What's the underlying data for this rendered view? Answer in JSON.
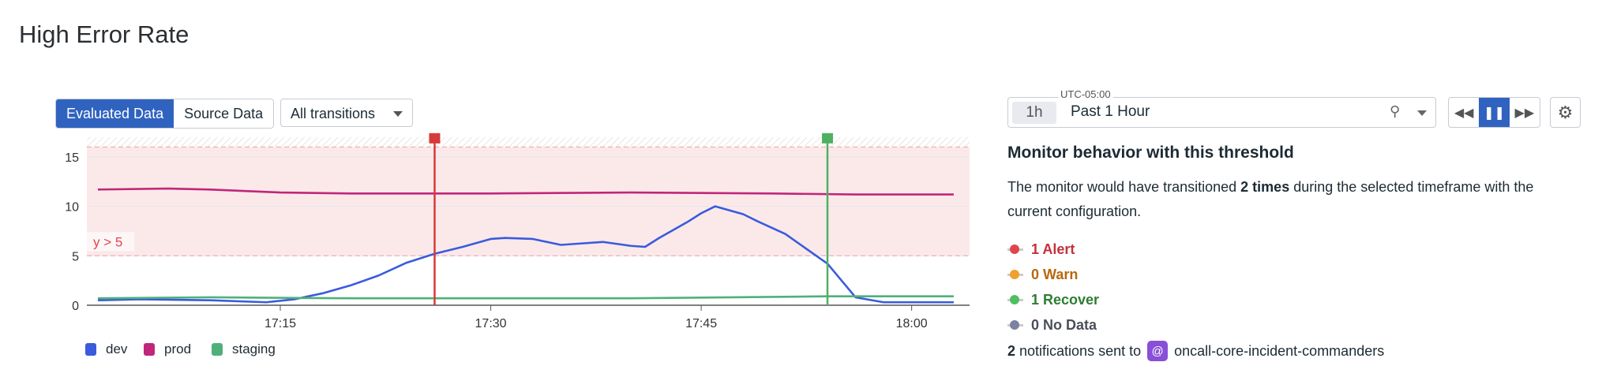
{
  "title": "High Error Rate",
  "toolbar": {
    "evaluated_label": "Evaluated Data",
    "source_label": "Source Data",
    "transitions_select": "All transitions"
  },
  "time_picker": {
    "timezone": "UTC-05:00",
    "chip": "1h",
    "label": "Past 1 Hour",
    "icons": [
      "pin-icon",
      "chevron-down-icon",
      "rewind-icon",
      "pause-icon",
      "fast-forward-icon",
      "gear-icon"
    ]
  },
  "monitor_behavior": {
    "title": "Monitor behavior with this threshold",
    "text_before": "The monitor would have transitioned ",
    "text_bold": "2 times",
    "text_after": " during the selected timeframe with the current configuration.",
    "items": [
      {
        "label": "1 Alert",
        "color": "#c4313a",
        "dot": "#e0454e"
      },
      {
        "label": "0 Warn",
        "color": "#b8670e",
        "dot": "#f0a030"
      },
      {
        "label": "1 Recover",
        "color": "#2e7d32",
        "dot": "#4fbf62"
      },
      {
        "label": "0 No Data",
        "color": "#4a4f5a",
        "dot": "#7c83a0"
      }
    ],
    "notif_count": "2",
    "notif_text": " notifications sent to",
    "notif_target": "oncall-core-incident-commanders"
  },
  "chart_data": {
    "type": "line",
    "ylim": [
      0,
      17
    ],
    "yticks": [
      "0",
      "5",
      "10",
      "15"
    ],
    "xticks": [
      "17:15",
      "17:30",
      "17:45",
      "18:00"
    ],
    "grid": true,
    "legend_placement": "bottom-left",
    "threshold": {
      "label": "y > 5",
      "value": 5,
      "upper": 16,
      "color": "#e0454e"
    },
    "markers": [
      {
        "time": "17:26",
        "type": "alert",
        "color": "#d63a3a"
      },
      {
        "time": "17:54",
        "type": "recover",
        "color": "#4fb062"
      }
    ],
    "series": [
      {
        "name": "dev",
        "color": "#3a5bdc",
        "points": [
          [
            "17:02",
            0.5
          ],
          [
            "17:05",
            0.6
          ],
          [
            "17:10",
            0.5
          ],
          [
            "17:14",
            0.3
          ],
          [
            "17:16",
            0.6
          ],
          [
            "17:18",
            1.2
          ],
          [
            "17:20",
            2.0
          ],
          [
            "17:22",
            3.0
          ],
          [
            "17:24",
            4.3
          ],
          [
            "17:26",
            5.2
          ],
          [
            "17:28",
            5.9
          ],
          [
            "17:30",
            6.7
          ],
          [
            "17:31",
            6.8
          ],
          [
            "17:33",
            6.7
          ],
          [
            "17:35",
            6.1
          ],
          [
            "17:36",
            6.2
          ],
          [
            "17:38",
            6.4
          ],
          [
            "17:40",
            6.0
          ],
          [
            "17:41",
            5.9
          ],
          [
            "17:42",
            6.8
          ],
          [
            "17:44",
            8.4
          ],
          [
            "17:45",
            9.3
          ],
          [
            "17:46",
            10.0
          ],
          [
            "17:48",
            9.2
          ],
          [
            "17:49",
            8.5
          ],
          [
            "17:51",
            7.2
          ],
          [
            "17:54",
            4.2
          ],
          [
            "17:56",
            0.8
          ],
          [
            "17:58",
            0.3
          ],
          [
            "18:03",
            0.3
          ]
        ]
      },
      {
        "name": "prod",
        "color": "#c0267a",
        "points": [
          [
            "17:02",
            11.7
          ],
          [
            "17:07",
            11.8
          ],
          [
            "17:10",
            11.7
          ],
          [
            "17:15",
            11.4
          ],
          [
            "17:20",
            11.3
          ],
          [
            "17:30",
            11.3
          ],
          [
            "17:40",
            11.4
          ],
          [
            "17:50",
            11.3
          ],
          [
            "17:56",
            11.2
          ],
          [
            "18:03",
            11.2
          ]
        ]
      },
      {
        "name": "staging",
        "color": "#4fb07a",
        "points": [
          [
            "17:02",
            0.7
          ],
          [
            "17:10",
            0.8
          ],
          [
            "17:20",
            0.7
          ],
          [
            "17:40",
            0.7
          ],
          [
            "17:54",
            0.9
          ],
          [
            "18:03",
            0.9
          ]
        ]
      }
    ]
  }
}
